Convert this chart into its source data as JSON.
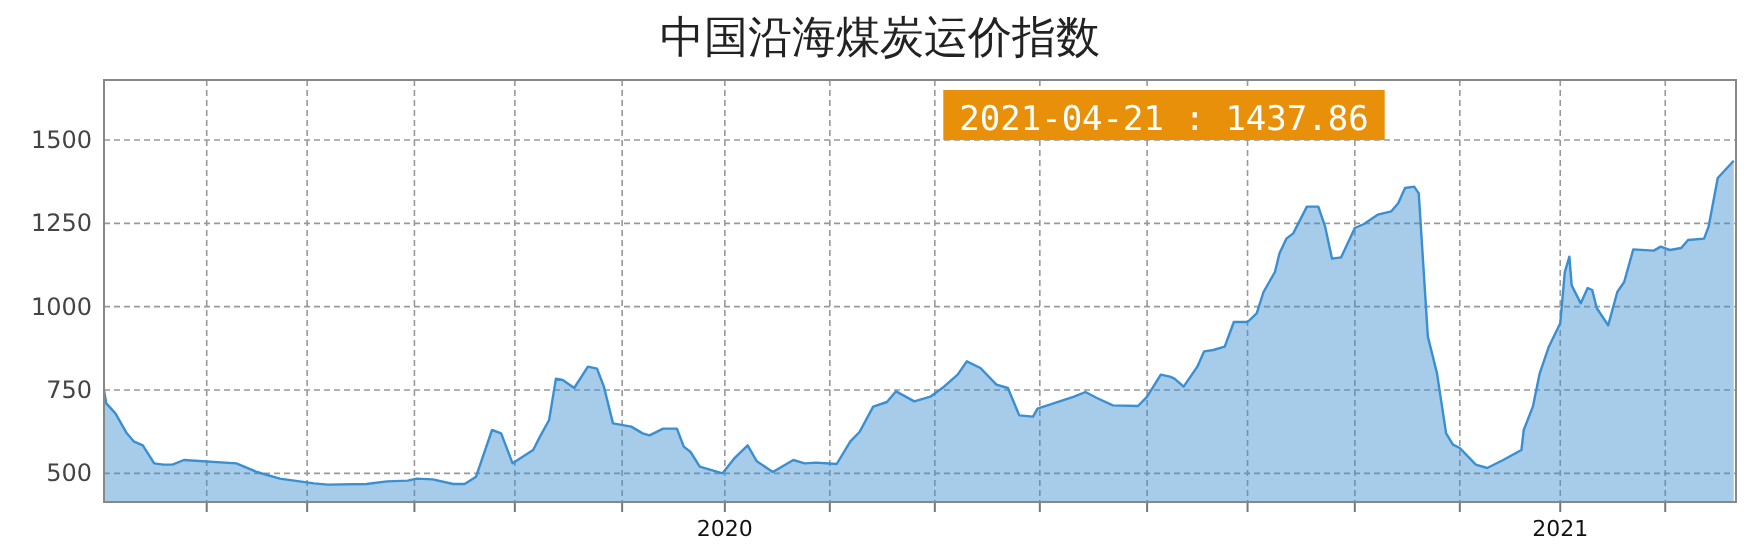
{
  "chart_data": {
    "type": "area",
    "title": "中国沿海煤炭运价指数",
    "annotations": [
      "2021-04-21 : 1437.86"
    ],
    "x": [
      "2019-04-04",
      "2019-04-05",
      "2019-04-09",
      "2019-04-14",
      "2019-04-17",
      "2019-04-21",
      "2019-04-26",
      "2019-04-30",
      "2019-05-04",
      "2019-05-09",
      "2019-06-01",
      "2019-06-10",
      "2019-06-20",
      "2019-07-05",
      "2019-07-11",
      "2019-07-28",
      "2019-08-06",
      "2019-08-15",
      "2019-08-19",
      "2019-08-26",
      "2019-09-04",
      "2019-09-09",
      "2019-09-14",
      "2019-09-21",
      "2019-09-25",
      "2019-09-30",
      "2019-10-09",
      "2019-10-12",
      "2019-10-16",
      "2019-10-19",
      "2019-10-22",
      "2019-10-27",
      "2019-11-02",
      "2019-11-06",
      "2019-11-09",
      "2019-11-13",
      "2019-11-21",
      "2019-11-26",
      "2019-11-29",
      "2019-12-05",
      "2019-12-11",
      "2019-12-14",
      "2019-12-17",
      "2019-12-21",
      "2019-12-31",
      "2020-01-05",
      "2020-01-11",
      "2020-01-15",
      "2020-01-22",
      "2020-01-31",
      "2020-02-05",
      "2020-02-10",
      "2020-02-19",
      "2020-02-25",
      "2020-02-29",
      "2020-03-06",
      "2020-03-12",
      "2020-03-16",
      "2020-03-24",
      "2020-03-31",
      "2020-04-06",
      "2020-04-12",
      "2020-04-16",
      "2020-04-22",
      "2020-04-29",
      "2020-05-04",
      "2020-05-09",
      "2020-05-15",
      "2020-05-17",
      "2020-06-02",
      "2020-06-07",
      "2020-06-12",
      "2020-06-19",
      "2020-06-30",
      "2020-07-04",
      "2020-07-10",
      "2020-07-14",
      "2020-07-16",
      "2020-07-20",
      "2020-07-26",
      "2020-07-29",
      "2020-08-02",
      "2020-08-07",
      "2020-08-11",
      "2020-08-17",
      "2020-08-21",
      "2020-08-24",
      "2020-08-29",
      "2020-08-31",
      "2020-09-03",
      "2020-09-06",
      "2020-09-12",
      "2020-09-17",
      "2020-09-20",
      "2020-09-23",
      "2020-09-27",
      "2020-10-03",
      "2020-10-07",
      "2020-10-13",
      "2020-10-19",
      "2020-10-22",
      "2020-10-25",
      "2020-10-29",
      "2020-10-31",
      "2020-11-04",
      "2020-11-08",
      "2020-11-12",
      "2020-11-15",
      "2020-11-18",
      "2020-11-25",
      "2020-11-30",
      "2020-12-07",
      "2020-12-15",
      "2020-12-16",
      "2020-12-20",
      "2020-12-23",
      "2020-12-27",
      "2021-01-01",
      "2021-01-03",
      "2021-01-05",
      "2021-01-06",
      "2021-01-10",
      "2021-01-13",
      "2021-01-15",
      "2021-01-17",
      "2021-01-22",
      "2021-01-26",
      "2021-01-29",
      "2021-02-02",
      "2021-02-11",
      "2021-02-14",
      "2021-02-18",
      "2021-02-23",
      "2021-02-26",
      "2021-03-05",
      "2021-03-07",
      "2021-03-11",
      "2021-03-18"
    ],
    "series": [
      {
        "color": "#3a8fd0",
        "values": [
          750,
          710,
          680,
          620,
          596,
          584,
          530,
          526,
          526,
          540,
          530,
          504,
          484,
          470,
          466,
          468,
          476,
          478,
          484,
          482,
          468,
          468,
          490,
          630,
          620,
          530,
          570,
          610,
          660,
          784,
          780,
          756,
          820,
          814,
          760,
          650,
          640,
          620,
          614,
          634,
          634,
          580,
          564,
          520,
          500,
          544,
          584,
          536,
          504,
          540,
          530,
          532,
          528,
          596,
          624,
          700,
          714,
          746,
          716,
          730,
          760,
          796,
          836,
          816,
          766,
          756,
          674,
          670,
          694,
          730,
          744,
          726,
          704,
          702,
          730,
          796,
          790,
          784,
          760,
          820,
          866,
          870,
          880,
          954,
          954,
          980,
          1044,
          1104,
          1160,
          1204,
          1220,
          1300,
          1300,
          1240,
          1144,
          1148,
          1236,
          1248,
          1276,
          1286,
          1310,
          1356,
          1360,
          1340,
          910,
          800,
          620,
          586,
          576,
          526,
          516,
          540,
          570,
          630,
          700,
          800,
          880,
          950,
          1104,
          1150,
          1064,
          1010,
          1056,
          1050,
          996,
          944,
          1044,
          1074,
          1172,
          1168,
          1180,
          1170,
          1176,
          1200,
          1204,
          1240,
          1386,
          1437.86
        ]
      }
    ],
    "xlim": [
      "2019-04-04",
      "2021-03-19"
    ],
    "xticks": [
      {
        "value": "2019-05-19",
        "label": null
      },
      {
        "value": "2019-07-02",
        "label": null
      },
      {
        "value": "2019-08-18",
        "label": null
      },
      {
        "value": "2019-10-01",
        "label": null
      },
      {
        "value": "2019-11-17",
        "label": null
      },
      {
        "value": "2020-01-01",
        "label": "2020"
      },
      {
        "value": "2020-02-16",
        "label": null
      },
      {
        "value": "2020-04-02",
        "label": null
      },
      {
        "value": "2020-05-18",
        "label": null
      },
      {
        "value": "2020-07-04",
        "label": null
      },
      {
        "value": "2020-08-17",
        "label": null
      },
      {
        "value": "2020-10-03",
        "label": null
      },
      {
        "value": "2020-11-18",
        "label": null
      },
      {
        "value": "2021-01-01",
        "label": "2021"
      },
      {
        "value": "2021-02-16",
        "label": null
      }
    ],
    "ylim": [
      414,
      1680
    ],
    "yticks": [
      500,
      750,
      1000,
      1250,
      1500
    ],
    "grid": true
  }
}
